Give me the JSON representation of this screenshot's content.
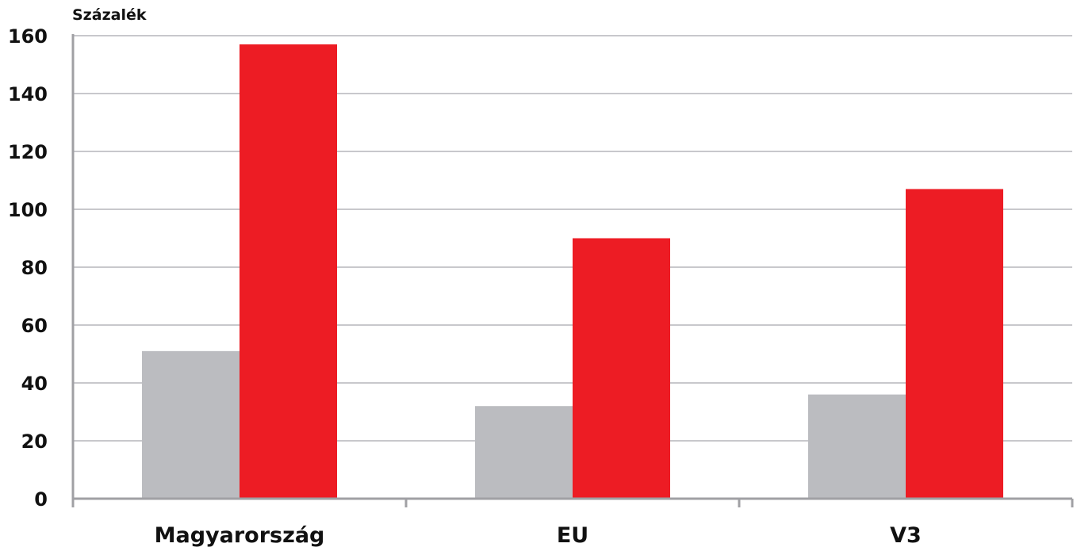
{
  "chart_data": {
    "type": "bar",
    "title": "",
    "xlabel": "",
    "ylabel": "Százalék",
    "categories": [
      "Magyarország",
      "EU",
      "V3"
    ],
    "series": [
      {
        "values": [
          51,
          32,
          36
        ],
        "color": "#bbbcc0"
      },
      {
        "values": [
          157,
          90,
          107
        ],
        "color": "#ed1c24"
      }
    ],
    "ylim": [
      0,
      160
    ],
    "yticks": [
      0,
      20,
      40,
      60,
      80,
      100,
      120,
      140,
      160
    ],
    "ytick_labels": [
      "0",
      "20",
      "40",
      "60",
      "80",
      "100",
      "120",
      "140",
      "160"
    ],
    "grid": true,
    "legend": "none"
  },
  "colors": {
    "axis": "#a0a0a4",
    "grid": "#c8c8cc",
    "text": "#111111"
  }
}
